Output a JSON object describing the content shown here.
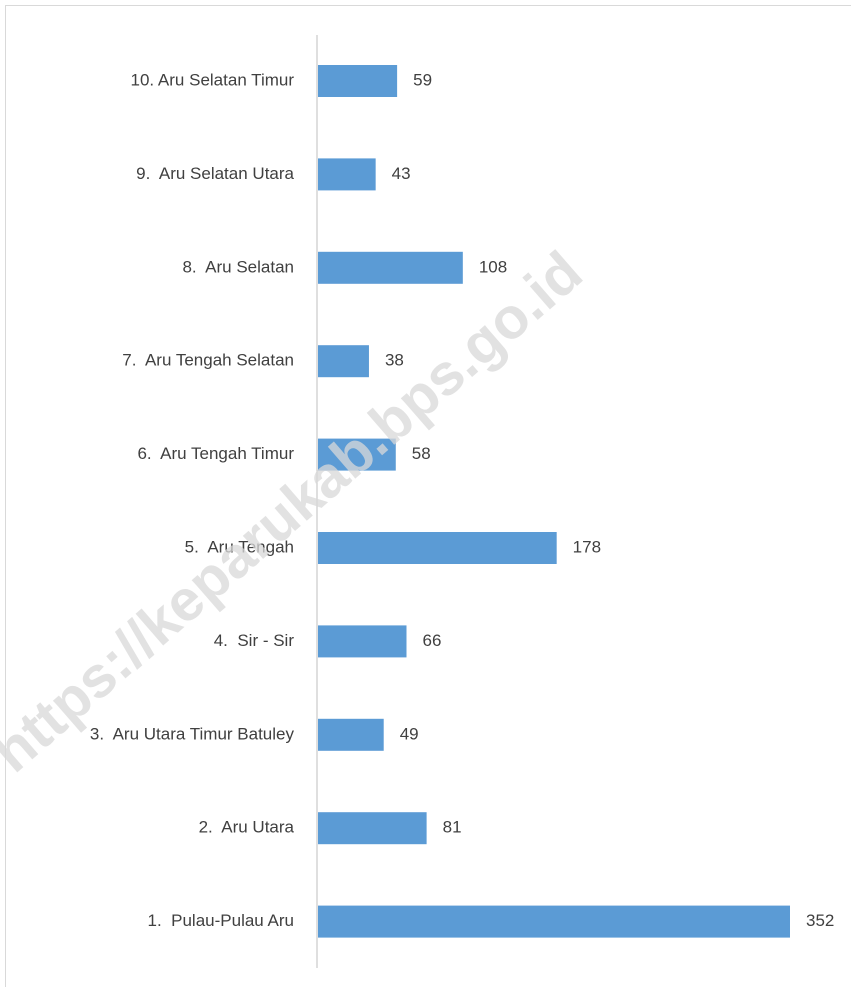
{
  "chart_data": {
    "type": "bar",
    "orientation": "horizontal",
    "categories": [
      "10. Aru Selatan Timur",
      "9.  Aru Selatan Utara",
      "8.  Aru Selatan",
      "7.  Aru Tengah Selatan",
      "6.  Aru Tengah Timur",
      "5.  Aru Tengah",
      "4.  Sir - Sir",
      "3.  Aru Utara Timur Batuley",
      "2.  Aru Utara",
      "1.  Pulau-Pulau Aru"
    ],
    "values": [
      59,
      43,
      108,
      38,
      58,
      178,
      66,
      49,
      81,
      352
    ],
    "color": "#5b9bd5",
    "watermark": "https://keparukab.bps.go.id"
  }
}
